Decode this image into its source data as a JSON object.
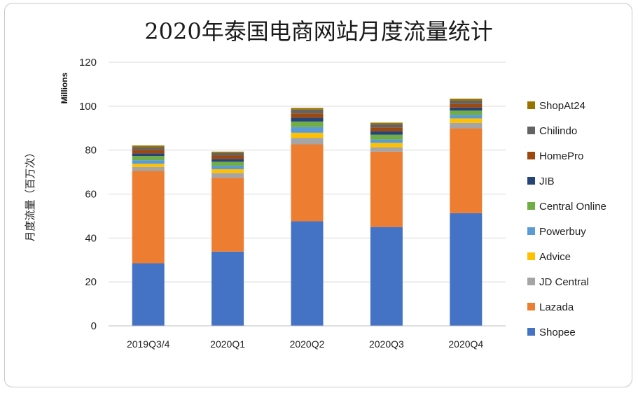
{
  "chart_data": {
    "type": "bar",
    "stacked": true,
    "title": "2020年泰国电商网站月度流量统计",
    "ylabel": "月度流量（百万次）",
    "yunit": "Millions",
    "ylim": [
      0,
      120
    ],
    "yticks": [
      0,
      20,
      40,
      60,
      80,
      100,
      120
    ],
    "grid": true,
    "legend_position": "right",
    "categories": [
      "2019Q3/4",
      "2020Q1",
      "2020Q2",
      "2020Q3",
      "2020Q4"
    ],
    "series": [
      {
        "name": "Shopee",
        "color": "#4472C4",
        "values": [
          28.5,
          33.8,
          47.6,
          45.0,
          51.3
        ]
      },
      {
        "name": "Lazada",
        "color": "#ED7D31",
        "values": [
          42.0,
          33.6,
          35.0,
          34.3,
          38.6
        ]
      },
      {
        "name": "JD Central",
        "color": "#A5A5A5",
        "values": [
          1.8,
          2.2,
          3.0,
          2.0,
          2.5
        ]
      },
      {
        "name": "Advice",
        "color": "#FFC000",
        "values": [
          1.5,
          1.7,
          2.3,
          2.0,
          2.0
        ]
      },
      {
        "name": "Powerbuy",
        "color": "#5B9BD5",
        "values": [
          1.6,
          1.6,
          2.6,
          1.5,
          1.6
        ]
      },
      {
        "name": "Central Online",
        "color": "#70AD47",
        "values": [
          1.9,
          1.8,
          2.5,
          2.2,
          2.0
        ]
      },
      {
        "name": "JIB",
        "color": "#264478",
        "values": [
          1.2,
          1.3,
          1.8,
          1.6,
          1.4
        ]
      },
      {
        "name": "HomePro",
        "color": "#9E480E",
        "values": [
          1.6,
          1.5,
          1.9,
          1.7,
          1.6
        ]
      },
      {
        "name": "Chilindo",
        "color": "#636363",
        "values": [
          1.2,
          1.2,
          1.7,
          1.5,
          1.5
        ]
      },
      {
        "name": "ShopAt24",
        "color": "#997300",
        "values": [
          0.8,
          0.6,
          0.8,
          0.7,
          0.9
        ]
      }
    ]
  }
}
